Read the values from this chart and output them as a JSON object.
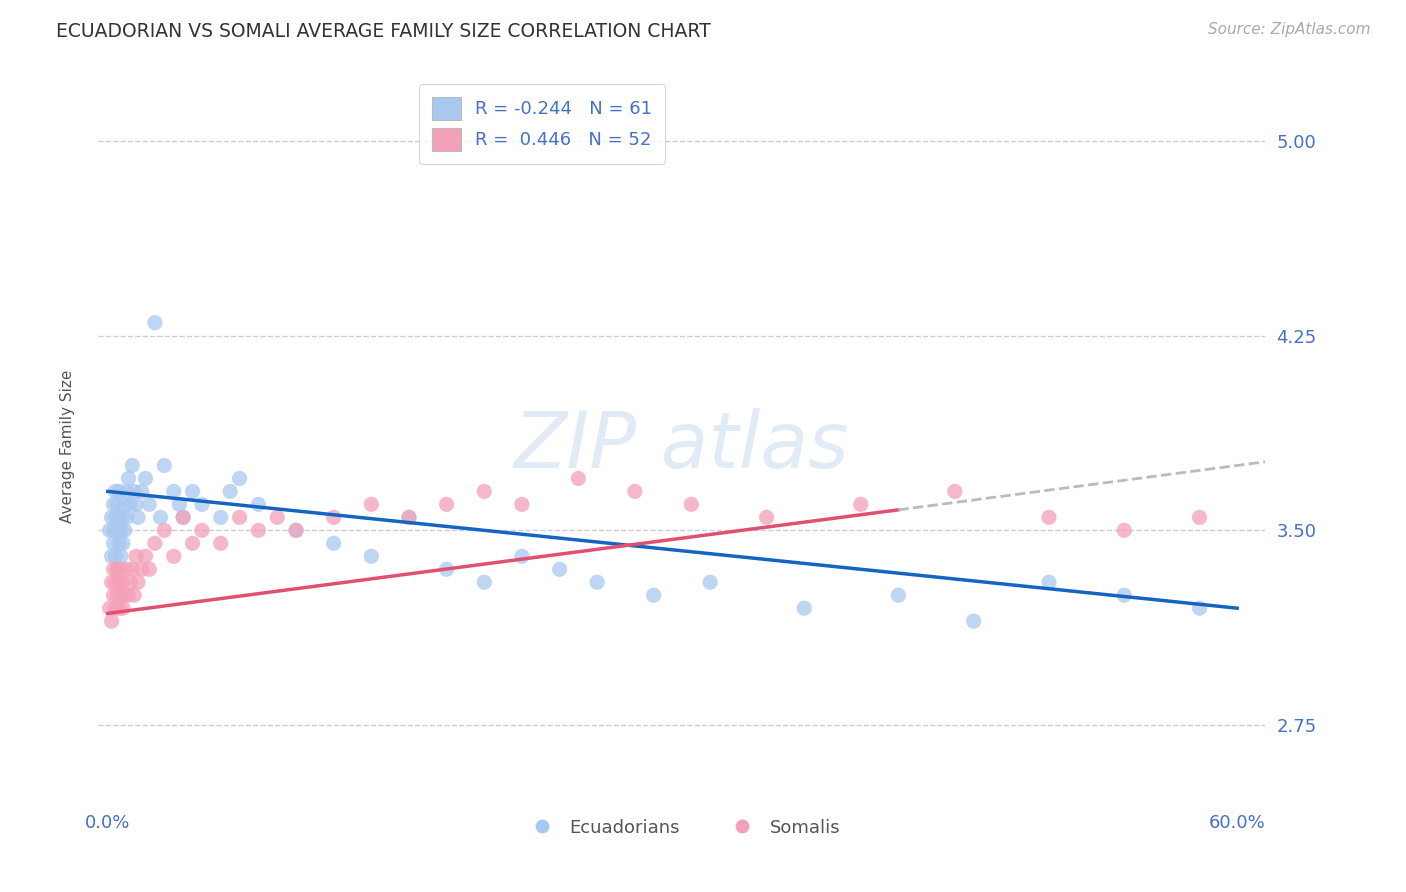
{
  "title": "ECUADORIAN VS SOMALI AVERAGE FAMILY SIZE CORRELATION CHART",
  "source": "Source: ZipAtlas.com",
  "ylabel": "Average Family Size",
  "xlim": [
    -0.005,
    0.615
  ],
  "ylim": [
    2.45,
    5.2
  ],
  "yticks": [
    2.75,
    3.5,
    4.25,
    5.0
  ],
  "xticks": [
    0.0,
    0.6
  ],
  "xticklabels": [
    "0.0%",
    "60.0%"
  ],
  "yticklabels": [
    "2.75",
    "3.50",
    "4.25",
    "5.00"
  ],
  "ecuadorian_color": "#A8C8F0",
  "somali_color": "#F4A0B8",
  "trend_ecuadorian_color": "#1565C0",
  "trend_somali_color": "#E05070",
  "trend_somali_dashed_color": "#BBBBBB",
  "title_color": "#333333",
  "axis_color": "#4472C4",
  "background_color": "#FFFFFF",
  "grid_color": "#CCCCDD",
  "r1": "-0.244",
  "n1": "61",
  "r2": "0.446",
  "n2": "52",
  "ecuadorian_x": [
    0.001,
    0.002,
    0.002,
    0.003,
    0.003,
    0.003,
    0.004,
    0.004,
    0.004,
    0.005,
    0.005,
    0.005,
    0.006,
    0.006,
    0.006,
    0.007,
    0.007,
    0.008,
    0.008,
    0.009,
    0.009,
    0.01,
    0.01,
    0.011,
    0.012,
    0.013,
    0.014,
    0.015,
    0.016,
    0.018,
    0.02,
    0.022,
    0.025,
    0.028,
    0.03,
    0.035,
    0.038,
    0.04,
    0.045,
    0.05,
    0.06,
    0.065,
    0.07,
    0.08,
    0.1,
    0.12,
    0.14,
    0.16,
    0.18,
    0.2,
    0.22,
    0.24,
    0.26,
    0.29,
    0.32,
    0.37,
    0.42,
    0.46,
    0.5,
    0.54,
    0.58
  ],
  "ecuadorian_y": [
    3.5,
    3.4,
    3.55,
    3.45,
    3.6,
    3.5,
    3.55,
    3.4,
    3.65,
    3.5,
    3.35,
    3.6,
    3.45,
    3.55,
    3.65,
    3.5,
    3.4,
    3.55,
    3.45,
    3.6,
    3.5,
    3.65,
    3.55,
    3.7,
    3.6,
    3.75,
    3.65,
    3.6,
    3.55,
    3.65,
    3.7,
    3.6,
    4.3,
    3.55,
    3.75,
    3.65,
    3.6,
    3.55,
    3.65,
    3.6,
    3.55,
    3.65,
    3.7,
    3.6,
    3.5,
    3.45,
    3.4,
    3.55,
    3.35,
    3.3,
    3.4,
    3.35,
    3.3,
    3.25,
    3.3,
    3.2,
    3.25,
    3.15,
    3.3,
    3.25,
    3.2
  ],
  "somali_x": [
    0.001,
    0.002,
    0.002,
    0.003,
    0.003,
    0.004,
    0.004,
    0.005,
    0.005,
    0.006,
    0.006,
    0.007,
    0.007,
    0.008,
    0.008,
    0.009,
    0.01,
    0.011,
    0.012,
    0.013,
    0.014,
    0.015,
    0.016,
    0.018,
    0.02,
    0.022,
    0.025,
    0.03,
    0.035,
    0.04,
    0.045,
    0.05,
    0.06,
    0.07,
    0.08,
    0.09,
    0.1,
    0.12,
    0.14,
    0.16,
    0.18,
    0.2,
    0.22,
    0.25,
    0.28,
    0.31,
    0.35,
    0.4,
    0.45,
    0.5,
    0.54,
    0.58
  ],
  "somali_y": [
    3.2,
    3.15,
    3.3,
    3.25,
    3.35,
    3.2,
    3.3,
    3.25,
    3.35,
    3.2,
    3.3,
    3.25,
    3.35,
    3.2,
    3.3,
    3.25,
    3.35,
    3.25,
    3.3,
    3.35,
    3.25,
    3.4,
    3.3,
    3.35,
    3.4,
    3.35,
    3.45,
    3.5,
    3.4,
    3.55,
    3.45,
    3.5,
    3.45,
    3.55,
    3.5,
    3.55,
    3.5,
    3.55,
    3.6,
    3.55,
    3.6,
    3.65,
    3.6,
    3.7,
    3.65,
    3.6,
    3.55,
    3.6,
    3.65,
    3.55,
    3.5,
    3.55
  ]
}
